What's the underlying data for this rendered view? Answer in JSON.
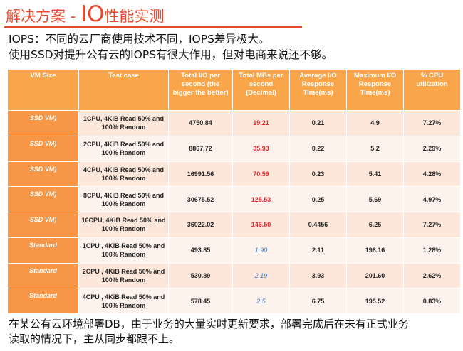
{
  "title": {
    "part1": "解决方案 - ",
    "part2": "IO",
    "part3": "性能实测"
  },
  "intro": [
    "IOPS：不同的云厂商使用技术不同，IOPS差异极大。",
    "使用SSD对提升公有云的IOPS有很大作用，但对电商来说还不够。"
  ],
  "table": {
    "headers": [
      "VM Size",
      "Test case",
      "Total I/O per second (the bigger the better)",
      "Total MBs per second (Decimal)",
      "Average I/O Response Time(ms)",
      "Maximum I/O Response Time(ms)",
      "% CPU utilization"
    ],
    "rows": [
      {
        "vm": "SSD VM)",
        "test": "1CPU, 4KiB Read 50% and 100% Random",
        "iops": "4750.84",
        "mbs": "19.21",
        "avg": "0.21",
        "max": "4.9",
        "cpu": "7.27%"
      },
      {
        "vm": "SSD VM)",
        "test": "2CPU, 4KiB Read 50% and 100% Random",
        "iops": "8867.72",
        "mbs": "35.93",
        "avg": "0.22",
        "max": "5.2",
        "cpu": "2.29%"
      },
      {
        "vm": "SSD VM)",
        "test": "4CPU, 4KiB Read 50% and 100% Random",
        "iops": "16991.56",
        "mbs": "70.59",
        "avg": "0.23",
        "max": "5.41",
        "cpu": "4.28%"
      },
      {
        "vm": "SSD VM)",
        "test": "8CPU, 4KiB Read 50% and 100% Random",
        "iops": "30675.52",
        "mbs": "125.53",
        "avg": "0.25",
        "max": "5.69",
        "cpu": "4.97%"
      },
      {
        "vm": "SSD VM)",
        "test": "16CPU, 4KiB Read 50% and 100% Random",
        "iops": "36022.02",
        "mbs": "146.50",
        "avg": "0.4456",
        "max": "6.25",
        "cpu": "7.27%"
      },
      {
        "vm": "Standard",
        "test": "1CPU , 4KiB Read 50% and 100% Random",
        "iops": "493.85",
        "mbs": "1.90",
        "avg": "2.11",
        "max": "198.16",
        "cpu": "1.28%"
      },
      {
        "vm": "Standard",
        "test": "2CPU , 4KiB Read 50% and 100% Random",
        "iops": "530.89",
        "mbs": "2.19",
        "avg": "3.93",
        "max": "201.60",
        "cpu": "2.62%"
      },
      {
        "vm": "Standard",
        "test": "4CPU , 4KiB Read 50% and 100% Random",
        "iops": "578.45",
        "mbs": "2.5",
        "avg": "6.75",
        "max": "195.52",
        "cpu": "0.83%"
      }
    ]
  },
  "footer": [
    "在某公有云环境部署DB，由于业务的大量实时更新要求，部署完成后在未有正式业务",
    "读取的情况下，主从同步都跟不上。"
  ]
}
